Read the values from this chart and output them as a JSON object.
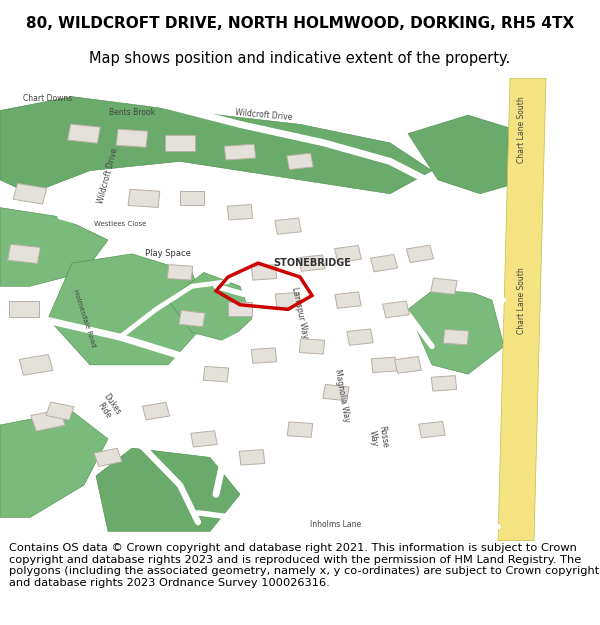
{
  "title_line1": "80, WILDCROFT DRIVE, NORTH HOLMWOOD, DORKING, RH5 4TX",
  "title_line2": "Map shows position and indicative extent of the property.",
  "footer_text": "Contains OS data © Crown copyright and database right 2021. This information is subject to Crown copyright and database rights 2023 and is reproduced with the permission of HM Land Registry. The polygons (including the associated geometry, namely x, y co-ordinates) are subject to Crown copyright and database rights 2023 Ordnance Survey 100026316.",
  "title_fontsize": 11,
  "footer_fontsize": 8.2,
  "bg_color": "#ffffff",
  "map_bg": "#eeebe5",
  "green1": "#6aaa6a",
  "green2": "#7aba7a",
  "road_yellow": "#f5e382",
  "building_color": "#e4e0da",
  "building_edge": "#b8b0a5",
  "red_color": "#cc0000",
  "label_color": "#444444"
}
